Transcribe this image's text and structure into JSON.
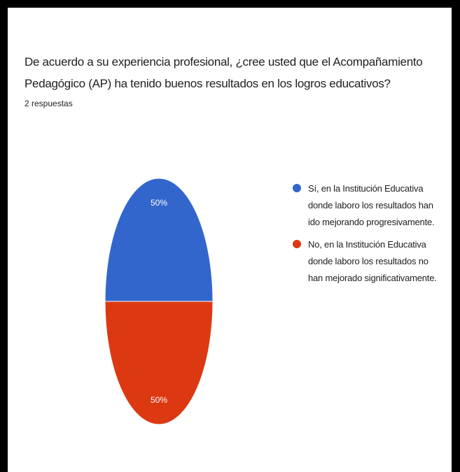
{
  "question": {
    "title": "De acuerdo a su experiencia profesional, ¿cree usted que el Acompañamiento Pedagógico (AP) ha tenido buenos resultados en los logros educativos?",
    "response_count": "2 respuestas"
  },
  "chart_data": {
    "type": "pie",
    "categories": [
      "Sí, en la Institución Educativa donde laboro los resultados han ido mejorando progresivamente.",
      "No, en la Institución Educativa donde laboro los resultados no han mejorado significativamente."
    ],
    "values": [
      50,
      50
    ],
    "value_labels": [
      "50%",
      "50%"
    ],
    "colors": [
      "#3366cc",
      "#dc3912"
    ],
    "legend_position": "right"
  }
}
